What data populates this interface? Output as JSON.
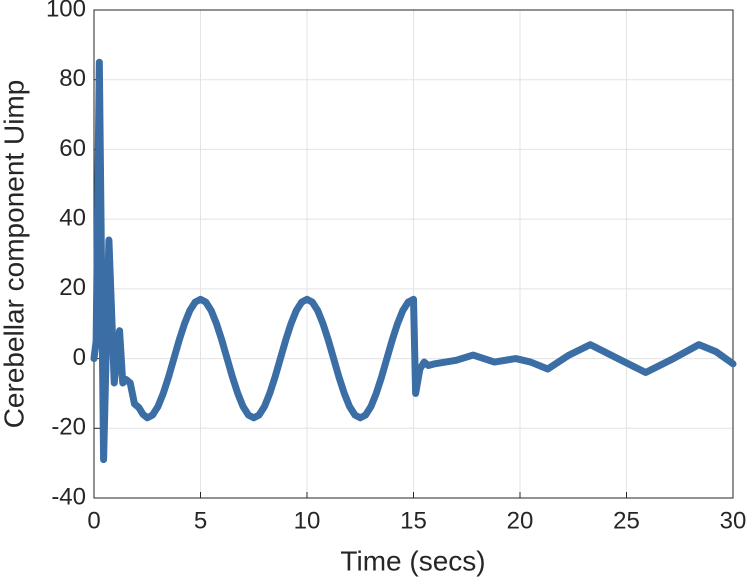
{
  "chart_data": {
    "type": "line",
    "xlabel": "Time (secs)",
    "ylabel": "Cerebellar component Uimp",
    "x": [
      0,
      0.1,
      0.25,
      0.45,
      0.7,
      0.95,
      1.2,
      1.35,
      1.5,
      1.7,
      1.9,
      2.1,
      2.3,
      2.5,
      2.75,
      3,
      3.25,
      3.5,
      3.75,
      4,
      4.25,
      4.5,
      4.75,
      5,
      5.25,
      5.5,
      5.75,
      6,
      6.25,
      6.5,
      6.75,
      7,
      7.25,
      7.5,
      7.75,
      8,
      8.25,
      8.5,
      8.75,
      9,
      9.25,
      9.5,
      9.75,
      10,
      10.25,
      10.5,
      10.75,
      11,
      11.25,
      11.5,
      11.75,
      12,
      12.25,
      12.5,
      12.75,
      13,
      13.25,
      13.5,
      13.75,
      14,
      14.25,
      14.5,
      14.75,
      15,
      15.1,
      15.3,
      15.5,
      15.7,
      16,
      16.5,
      17,
      17.8,
      18.8,
      19.8,
      20.5,
      21.3,
      22.3,
      23.3,
      24.6,
      25.9,
      27.2,
      28.4,
      29.2,
      30
    ],
    "series": [
      {
        "name": "Uimp",
        "color": "#3b6ea5",
        "values": [
          0,
          5,
          85,
          -29,
          34,
          -7,
          8,
          -7,
          -6,
          -7,
          -13,
          -14,
          -16,
          -17,
          -16.2,
          -13.8,
          -10,
          -5.3,
          0,
          5.3,
          10,
          13.8,
          16.2,
          17,
          16.2,
          13.8,
          10,
          5.3,
          0,
          -5.3,
          -10,
          -13.8,
          -16.2,
          -17,
          -16.2,
          -13.8,
          -10,
          -5.3,
          0,
          5.3,
          10,
          13.8,
          16.2,
          17,
          16.2,
          13.8,
          10,
          5.3,
          0,
          -5.3,
          -10,
          -13.8,
          -16.2,
          -17,
          -16.2,
          -13.8,
          -10,
          -5.3,
          0,
          5.3,
          10,
          13.8,
          16.2,
          17,
          -10,
          -3,
          -1,
          -2,
          -1.5,
          -1,
          -0.5,
          1,
          -1,
          0,
          -1,
          -3,
          1,
          4,
          0,
          -4,
          0,
          4,
          2,
          -1.5
        ]
      }
    ],
    "xlim": [
      0,
      30
    ],
    "xticks": [
      0,
      5,
      10,
      15,
      20,
      25,
      30
    ],
    "ylim": [
      -40,
      100
    ],
    "yticks": [
      -40,
      -20,
      0,
      20,
      40,
      60,
      80,
      100
    ],
    "grid": true
  }
}
